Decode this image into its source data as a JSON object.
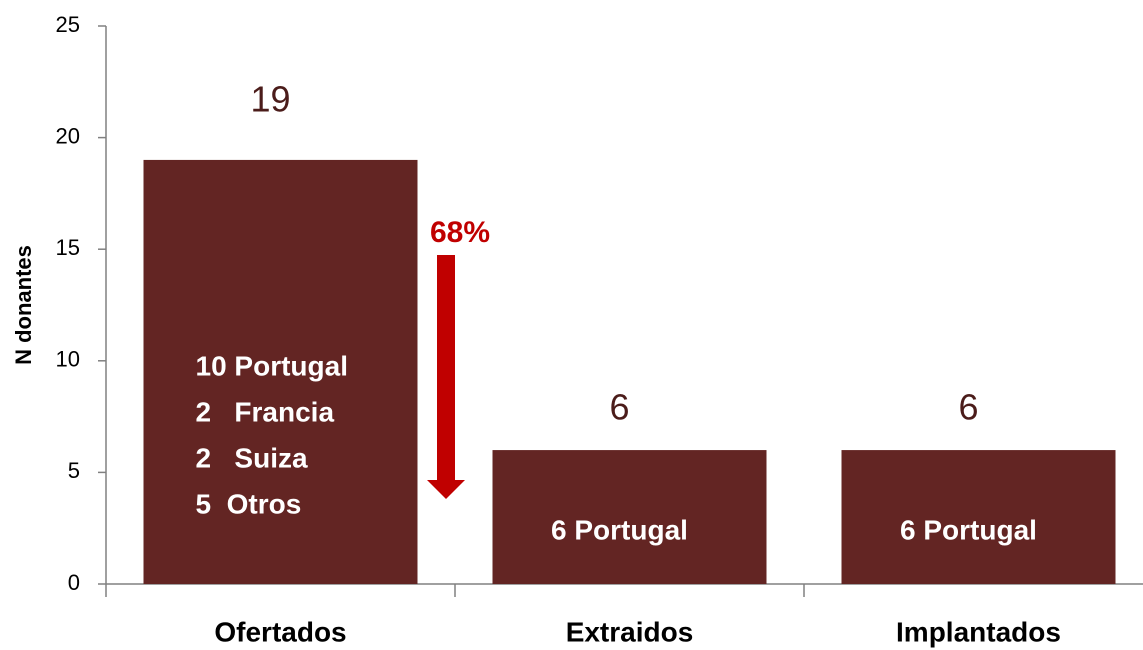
{
  "chart_data": {
    "type": "bar",
    "categories": [
      "Ofertados",
      "Extraidos",
      "Implantados"
    ],
    "values": [
      19,
      6,
      6
    ],
    "color": "#632523",
    "ylabel": "N donantes",
    "ylim": [
      0,
      25
    ],
    "yticks": [
      0,
      5,
      10,
      15,
      20,
      25
    ],
    "grid": false,
    "bar_notes": [
      [
        "10 Portugal",
        "2   Francia",
        "2   Suiza",
        "5  Otros"
      ],
      [
        "6 Portugal"
      ],
      [
        "6 Portugal"
      ]
    ],
    "annotations": [
      "68%"
    ]
  }
}
